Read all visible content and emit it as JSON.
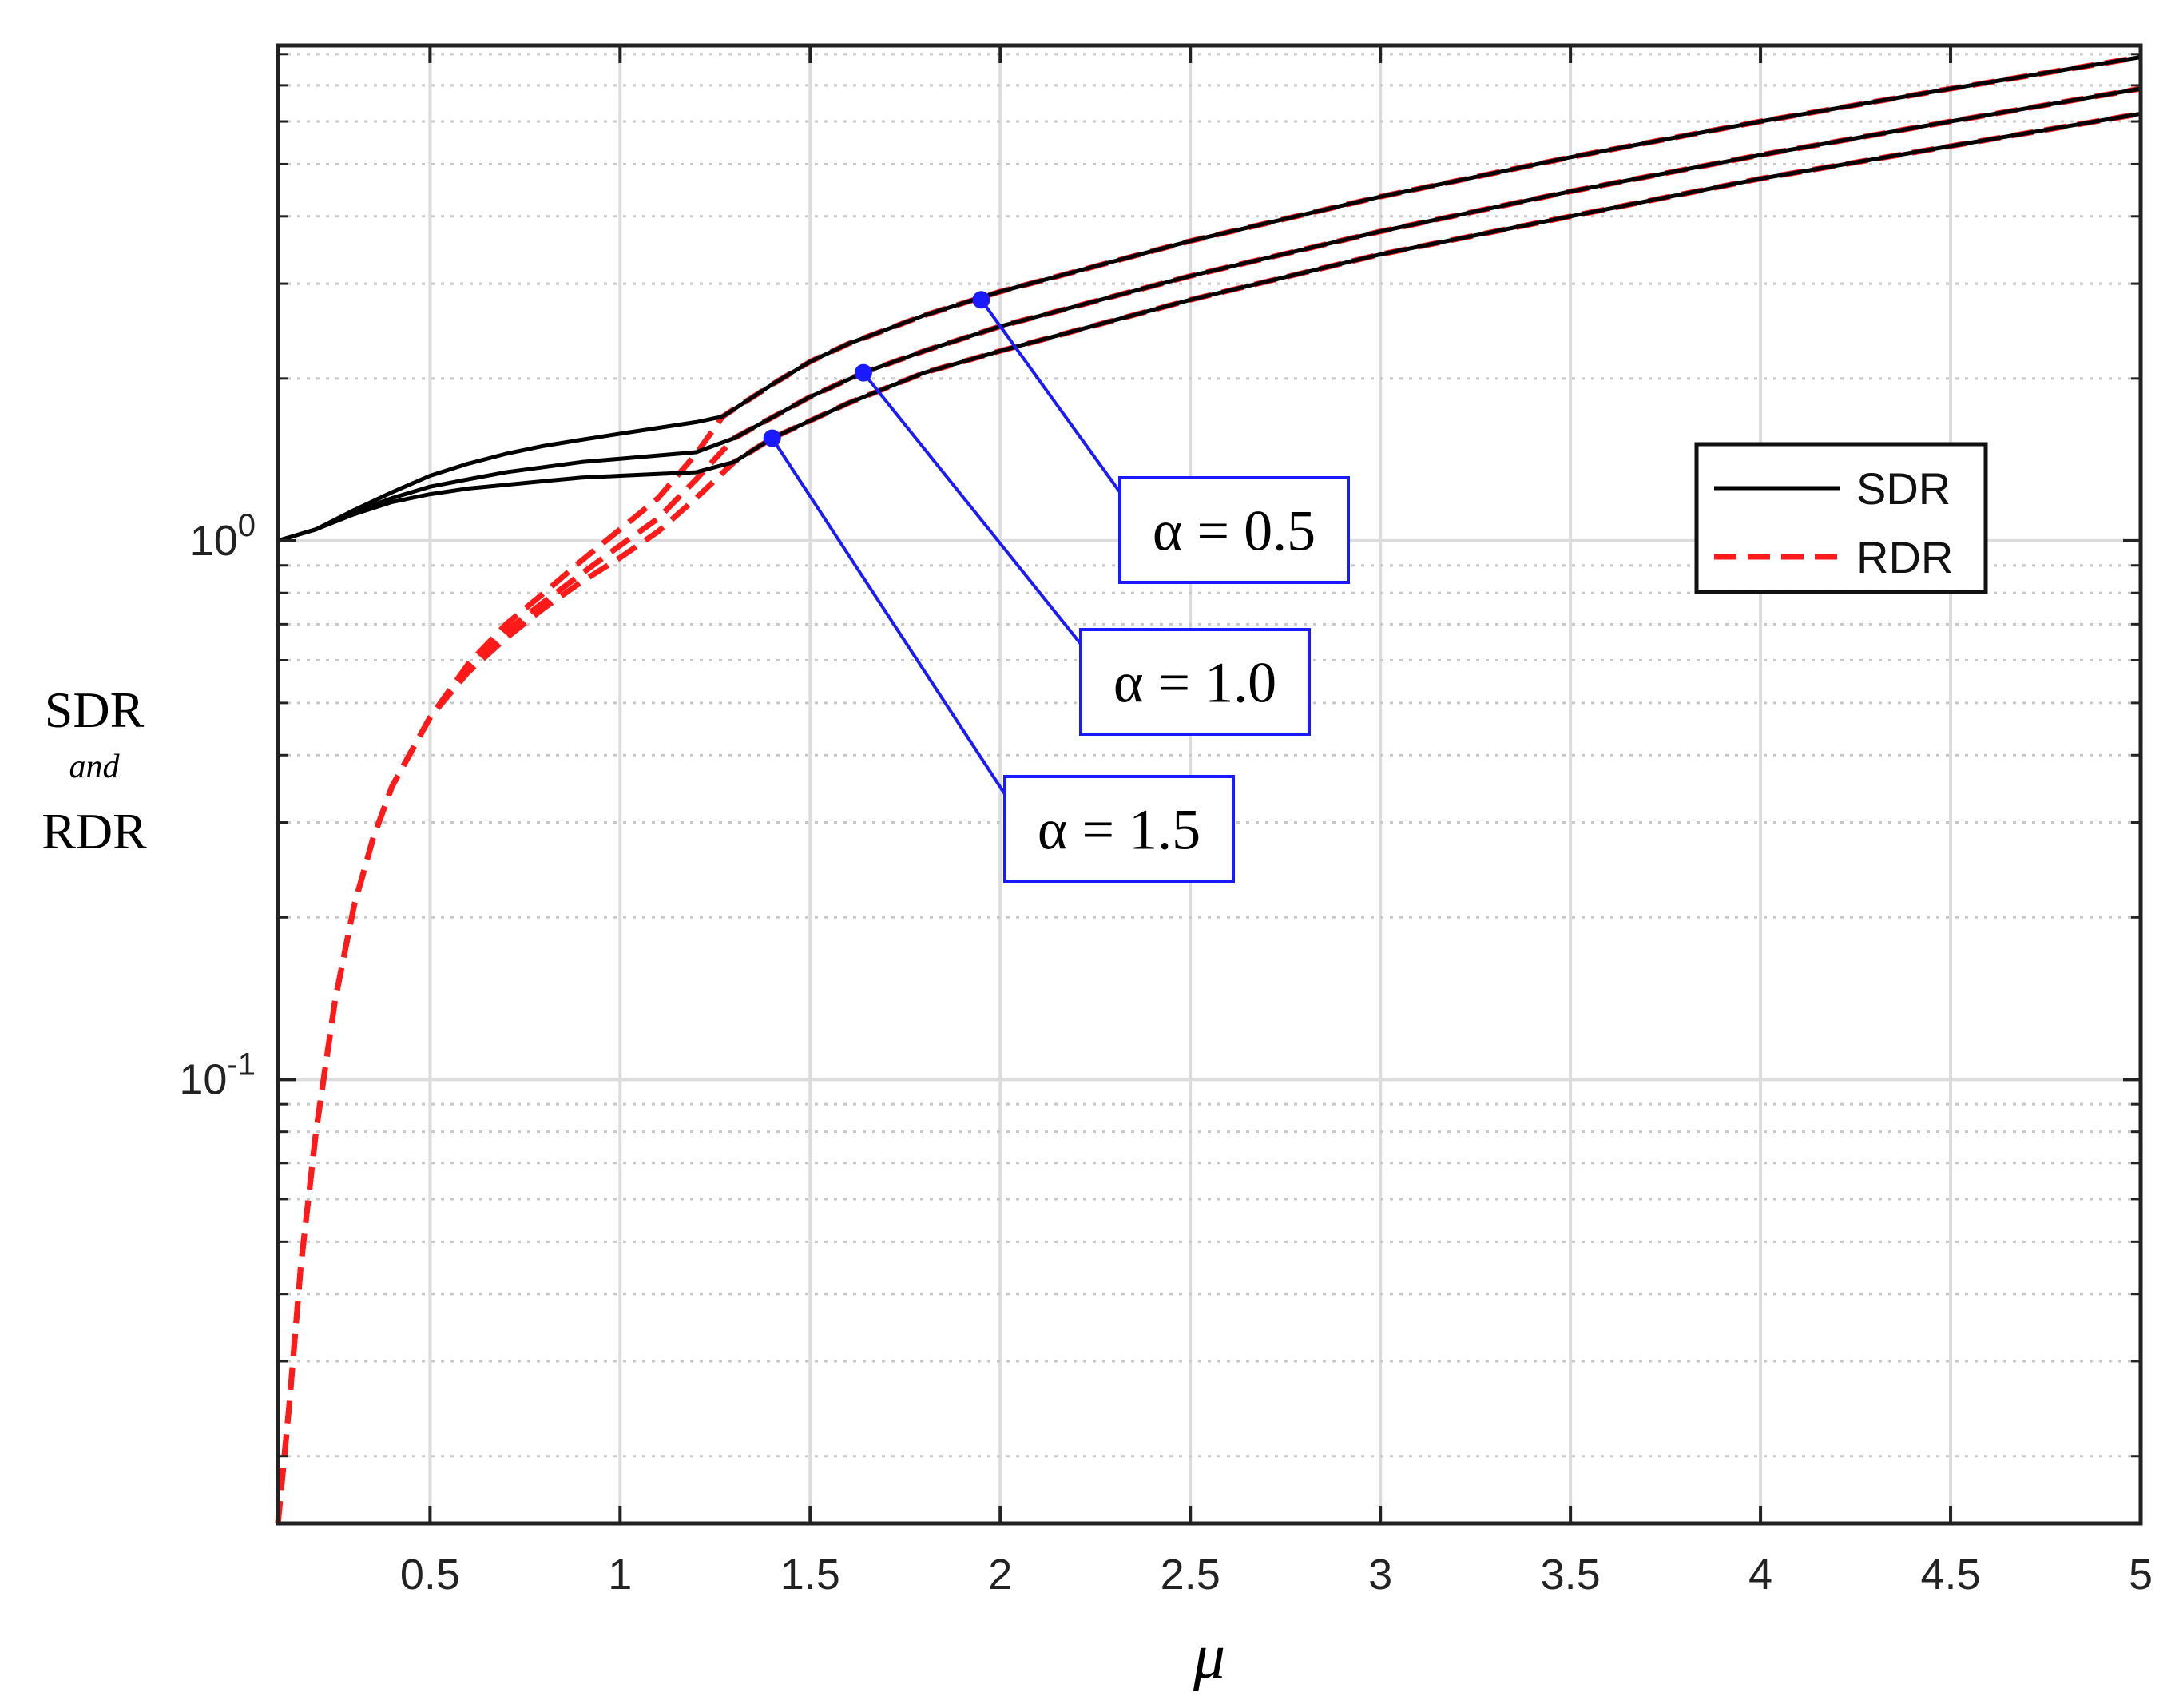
{
  "chart_data": {
    "type": "line",
    "xlabel": "μ",
    "ylabel_lines": [
      "SDR",
      "and",
      "RDR"
    ],
    "x_scale": "linear",
    "y_scale": "log",
    "xlim": [
      0.1,
      5
    ],
    "ylim": [
      0.015,
      8.3
    ],
    "grid": true,
    "x_ticks": [
      {
        "value": 0.5,
        "label": "0.5"
      },
      {
        "value": 1,
        "label": "1"
      },
      {
        "value": 1.5,
        "label": "1.5"
      },
      {
        "value": 2,
        "label": "2"
      },
      {
        "value": 2.5,
        "label": "2.5"
      },
      {
        "value": 3,
        "label": "3"
      },
      {
        "value": 3.5,
        "label": "3.5"
      },
      {
        "value": 4,
        "label": "4"
      },
      {
        "value": 4.5,
        "label": "4.5"
      },
      {
        "value": 5,
        "label": "5"
      }
    ],
    "y_ticks": [
      {
        "value": 1,
        "base": "10",
        "exp": "0"
      },
      {
        "value": 0.1,
        "base": "10",
        "exp": "-1"
      }
    ],
    "legend": {
      "placement": "right",
      "entries": [
        {
          "label": "SDR",
          "color": "#000000",
          "style": "solid"
        },
        {
          "label": "RDR",
          "color": "#ff1a1a",
          "style": "dashed"
        }
      ]
    },
    "annotations": [
      {
        "text": "α = 0.5",
        "point": [
          1.95,
          2.8
        ]
      },
      {
        "text": "α = 1.0",
        "point": [
          1.64,
          2.05
        ]
      },
      {
        "text": "α = 1.5",
        "point": [
          1.4,
          1.55
        ]
      }
    ],
    "series": [
      {
        "kind": "SDR",
        "alpha": "0.5",
        "color": "#000000",
        "style": "solid",
        "x": [
          0.1,
          0.2,
          0.3,
          0.4,
          0.5,
          0.6,
          0.7,
          0.8,
          0.9,
          1.0,
          1.1,
          1.2,
          1.27,
          1.4,
          1.5,
          1.6,
          1.8,
          2.0,
          2.5,
          3.0,
          3.5,
          4.0,
          4.5,
          5.0
        ],
        "values": [
          1.0,
          1.05,
          1.14,
          1.23,
          1.32,
          1.39,
          1.45,
          1.5,
          1.54,
          1.58,
          1.62,
          1.66,
          1.7,
          1.95,
          2.15,
          2.32,
          2.62,
          2.9,
          3.6,
          4.35,
          5.15,
          6.0,
          6.9,
          7.9
        ]
      },
      {
        "kind": "SDR",
        "alpha": "1.0",
        "color": "#000000",
        "style": "solid",
        "x": [
          0.1,
          0.2,
          0.3,
          0.4,
          0.5,
          0.6,
          0.7,
          0.8,
          0.9,
          1.0,
          1.1,
          1.2,
          1.3,
          1.5,
          1.64,
          1.8,
          2.0,
          2.5,
          3.0,
          3.5,
          4.0,
          4.5,
          5.0
        ],
        "values": [
          1.0,
          1.05,
          1.13,
          1.2,
          1.26,
          1.3,
          1.34,
          1.37,
          1.4,
          1.42,
          1.44,
          1.46,
          1.55,
          1.85,
          2.05,
          2.25,
          2.5,
          3.1,
          3.75,
          4.45,
          5.2,
          6.0,
          6.9
        ]
      },
      {
        "kind": "SDR",
        "alpha": "1.5",
        "color": "#000000",
        "style": "solid",
        "x": [
          0.1,
          0.2,
          0.3,
          0.4,
          0.5,
          0.6,
          0.7,
          0.8,
          0.9,
          1.0,
          1.1,
          1.2,
          1.3,
          1.4,
          1.6,
          1.8,
          2.0,
          2.5,
          3.0,
          3.5,
          4.0,
          4.5,
          5.0
        ],
        "values": [
          1.0,
          1.05,
          1.12,
          1.18,
          1.22,
          1.25,
          1.27,
          1.29,
          1.31,
          1.32,
          1.33,
          1.34,
          1.4,
          1.55,
          1.8,
          2.05,
          2.25,
          2.8,
          3.4,
          4.0,
          4.7,
          5.4,
          6.2
        ]
      },
      {
        "kind": "RDR",
        "alpha": "0.5",
        "color": "#ff1a1a",
        "style": "dashed",
        "x": [
          0.1,
          0.13,
          0.16,
          0.2,
          0.25,
          0.3,
          0.35,
          0.4,
          0.5,
          0.6,
          0.7,
          0.8,
          0.9,
          1.0,
          1.1,
          1.2,
          1.27,
          1.4,
          1.5,
          1.6,
          1.8,
          2.0,
          2.5,
          3.0,
          3.5,
          4.0,
          4.5,
          5.0
        ],
        "values": [
          0.015,
          0.025,
          0.045,
          0.08,
          0.14,
          0.21,
          0.28,
          0.35,
          0.47,
          0.59,
          0.7,
          0.8,
          0.92,
          1.05,
          1.2,
          1.45,
          1.7,
          1.95,
          2.15,
          2.32,
          2.62,
          2.9,
          3.6,
          4.35,
          5.15,
          6.0,
          6.9,
          7.9
        ]
      },
      {
        "kind": "RDR",
        "alpha": "1.0",
        "color": "#ff1a1a",
        "style": "dashed",
        "x": [
          0.1,
          0.13,
          0.16,
          0.2,
          0.25,
          0.3,
          0.35,
          0.4,
          0.5,
          0.6,
          0.7,
          0.8,
          0.9,
          1.0,
          1.1,
          1.2,
          1.3,
          1.5,
          1.64,
          1.8,
          2.0,
          2.5,
          3.0,
          3.5,
          4.0,
          4.5,
          5.0
        ],
        "values": [
          0.015,
          0.025,
          0.045,
          0.08,
          0.14,
          0.21,
          0.28,
          0.35,
          0.47,
          0.58,
          0.68,
          0.77,
          0.87,
          0.98,
          1.1,
          1.3,
          1.55,
          1.85,
          2.05,
          2.25,
          2.5,
          3.1,
          3.75,
          4.45,
          5.2,
          6.0,
          6.9
        ]
      },
      {
        "kind": "RDR",
        "alpha": "1.5",
        "color": "#ff1a1a",
        "style": "dashed",
        "x": [
          0.1,
          0.13,
          0.16,
          0.2,
          0.25,
          0.3,
          0.35,
          0.4,
          0.5,
          0.6,
          0.7,
          0.8,
          0.9,
          1.0,
          1.1,
          1.2,
          1.3,
          1.4,
          1.6,
          1.8,
          2.0,
          2.5,
          3.0,
          3.5,
          4.0,
          4.5,
          5.0
        ],
        "values": [
          0.015,
          0.025,
          0.045,
          0.08,
          0.14,
          0.21,
          0.28,
          0.35,
          0.47,
          0.57,
          0.66,
          0.75,
          0.84,
          0.93,
          1.04,
          1.2,
          1.4,
          1.55,
          1.8,
          2.05,
          2.25,
          2.8,
          3.4,
          4.0,
          4.7,
          5.4,
          6.2
        ]
      }
    ]
  }
}
